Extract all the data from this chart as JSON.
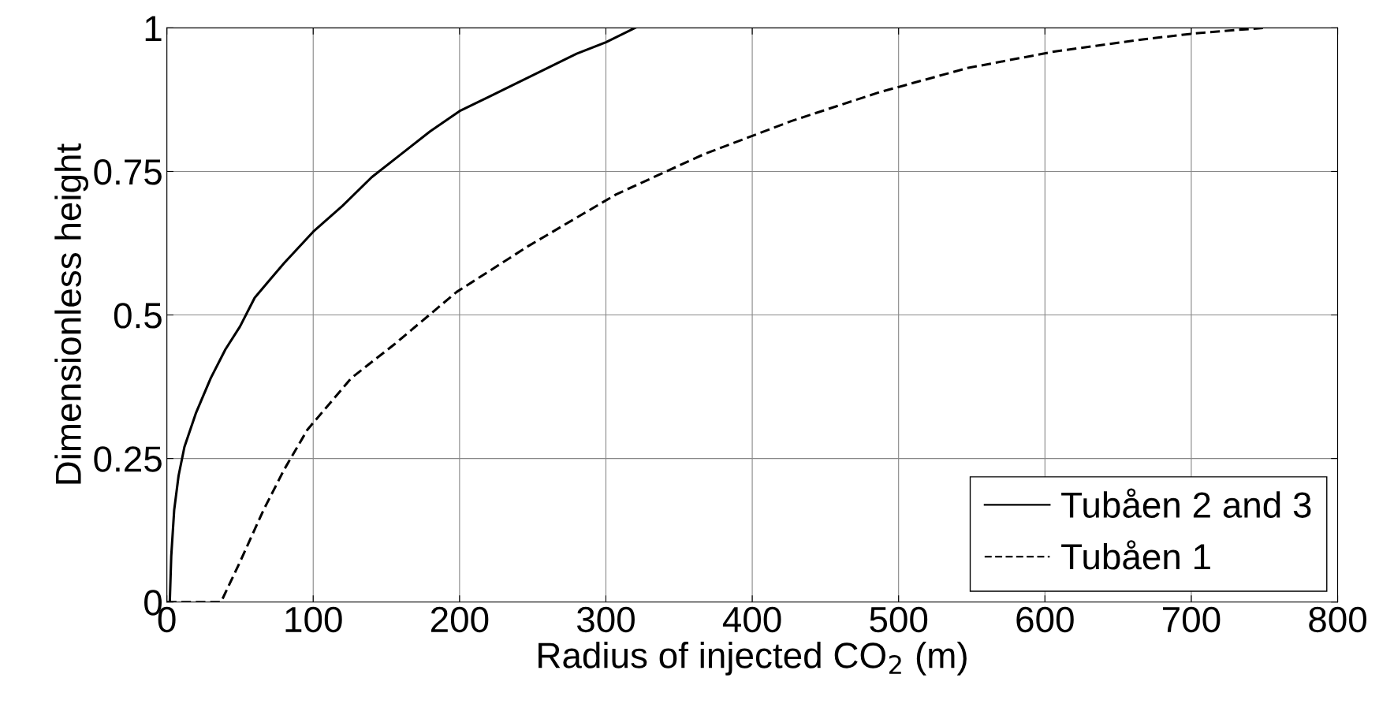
{
  "chart_data": {
    "type": "line",
    "xlabel": "Radius of injected CO$_{2}$ (m)",
    "ylabel": "Dimensionless height",
    "xlim": [
      0,
      800
    ],
    "xticks": [
      0,
      100,
      200,
      300,
      400,
      500,
      600,
      700,
      800
    ],
    "ylim": [
      0,
      1
    ],
    "yticks": [
      0,
      0.25,
      0.5,
      0.75,
      1
    ],
    "grid": true,
    "legend": "bottom right",
    "marker": "none",
    "series": [
      {
        "name": "Tubåen 2 and 3",
        "color": "#000000",
        "line_style": "solid",
        "x": [
          2,
          3,
          5,
          8,
          12,
          20,
          30,
          40,
          50,
          60,
          70,
          80,
          100,
          120,
          140,
          160,
          180,
          200,
          220,
          240,
          260,
          280,
          300,
          320
        ],
        "values": [
          0,
          0.08,
          0.16,
          0.22,
          0.27,
          0.33,
          0.39,
          0.44,
          0.48,
          0.53,
          0.56,
          0.59,
          0.645,
          0.69,
          0.74,
          0.78,
          0.82,
          0.855,
          0.88,
          0.905,
          0.93,
          0.955,
          0.975,
          1.0
        ]
      },
      {
        "name": "Tubåen 1",
        "color": "#000000",
        "line_style": "dashed",
        "x": [
          0,
          37,
          50,
          66,
          80,
          96,
          126,
          156,
          198,
          247,
          307,
          367,
          427,
          487,
          547,
          607,
          667,
          701,
          749
        ],
        "values": [
          0,
          0,
          0.07,
          0.16,
          0.23,
          0.3,
          0.39,
          0.45,
          0.54,
          0.62,
          0.71,
          0.78,
          0.838,
          0.888,
          0.93,
          0.959,
          0.98,
          0.99,
          1.0
        ]
      }
    ]
  }
}
